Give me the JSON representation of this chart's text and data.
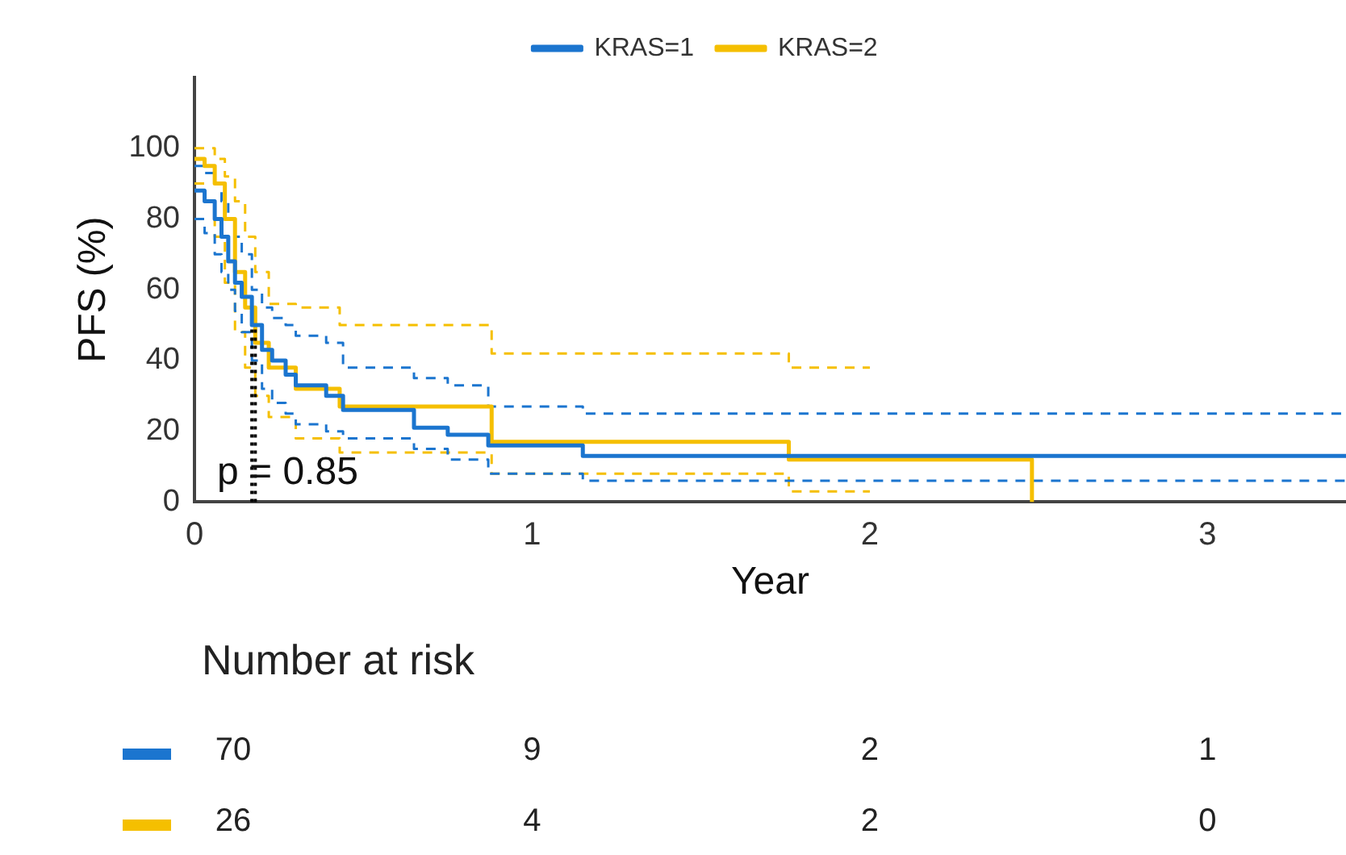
{
  "chart_data": {
    "type": "step",
    "xlabel": "Year",
    "ylabel": "PFS (%)",
    "xlim": [
      0,
      3.41
    ],
    "ylim": [
      0,
      120
    ],
    "xticks": [
      0,
      1,
      2,
      3
    ],
    "yticks": [
      0,
      20,
      40,
      60,
      80,
      100
    ],
    "legend": "top",
    "grid": false,
    "annotations": [
      "p = 0.85",
      "Number at risk",
      "70",
      "9",
      "2",
      "1",
      "26",
      "4",
      "2",
      "0"
    ],
    "ref_lines": [
      {
        "axis": "x",
        "value": 0.17,
        "color": "#000000",
        "line_style": "dotted"
      },
      {
        "axis": "x",
        "value": 0.18,
        "color": "#000000",
        "line_style": "dotted"
      }
    ],
    "series": [
      {
        "name": "KRAS=1",
        "color": "#1b75cf",
        "x": [
          0,
          0.03,
          0.06,
          0.08,
          0.1,
          0.12,
          0.14,
          0.17,
          0.2,
          0.23,
          0.27,
          0.3,
          0.39,
          0.44,
          0.65,
          0.75,
          0.87,
          1.15,
          3.41
        ],
        "values": [
          88,
          85,
          80,
          75,
          68,
          62,
          58,
          50,
          43,
          40,
          36,
          33,
          30,
          26,
          21,
          19,
          16,
          13,
          13
        ]
      },
      {
        "name": "KRAS=2",
        "color": "#f5bf00",
        "x": [
          0,
          0.03,
          0.06,
          0.09,
          0.12,
          0.15,
          0.18,
          0.22,
          0.3,
          0.43,
          0.88,
          1.76,
          2.0,
          2.48
        ],
        "values": [
          97,
          95,
          90,
          80,
          65,
          55,
          45,
          38,
          32,
          27,
          17,
          12,
          12,
          0
        ]
      },
      {
        "color": "#1b75cf",
        "line_style": "dashed",
        "x": [
          0,
          0.03,
          0.06,
          0.08,
          0.1,
          0.12,
          0.14,
          0.17,
          0.2,
          0.23,
          0.27,
          0.3,
          0.39,
          0.44,
          0.65,
          0.75,
          0.87,
          1.15,
          3.41
        ],
        "values": [
          95,
          93,
          90,
          85,
          80,
          75,
          70,
          60,
          55,
          52,
          50,
          47,
          45,
          38,
          35,
          33,
          27,
          25,
          25
        ]
      },
      {
        "color": "#1b75cf",
        "line_style": "dashed",
        "x": [
          0,
          0.03,
          0.06,
          0.08,
          0.1,
          0.12,
          0.14,
          0.17,
          0.2,
          0.23,
          0.27,
          0.3,
          0.39,
          0.44,
          0.65,
          0.75,
          0.87,
          1.15,
          3.41
        ],
        "values": [
          80,
          76,
          70,
          65,
          60,
          54,
          48,
          40,
          32,
          28,
          25,
          22,
          20,
          18,
          15,
          12,
          8,
          6,
          6
        ]
      },
      {
        "color": "#f5bf00",
        "line_style": "dashed",
        "x": [
          0,
          0.03,
          0.06,
          0.09,
          0.12,
          0.15,
          0.18,
          0.22,
          0.3,
          0.43,
          0.88,
          1.76,
          2.0
        ],
        "values": [
          100,
          100,
          97,
          92,
          85,
          75,
          65,
          56,
          55,
          50,
          42,
          38,
          38
        ]
      },
      {
        "color": "#f5bf00",
        "line_style": "dashed",
        "x": [
          0,
          0.03,
          0.06,
          0.09,
          0.12,
          0.15,
          0.18,
          0.22,
          0.3,
          0.43,
          0.88,
          1.76,
          2.0
        ],
        "values": [
          90,
          85,
          75,
          62,
          48,
          38,
          30,
          24,
          18,
          14,
          8,
          3,
          3
        ]
      }
    ]
  }
}
